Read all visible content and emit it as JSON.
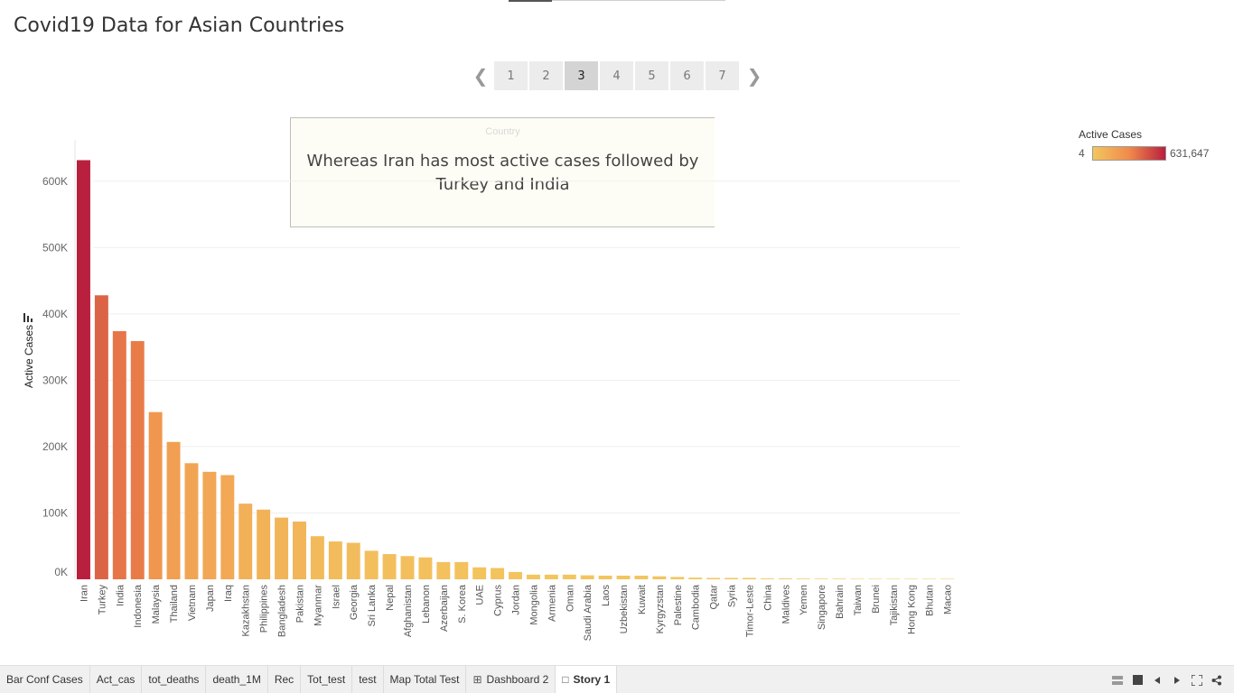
{
  "title": "Covid19 Data for Asian Countries",
  "pager": {
    "pages": [
      "1",
      "2",
      "3",
      "4",
      "5",
      "6",
      "7"
    ],
    "active_index": 2,
    "prev_icon": "chevron-left-icon",
    "next_icon": "chevron-right-icon"
  },
  "caption": {
    "header": "Country",
    "text": "Whereas Iran has most active cases followed by Turkey and India"
  },
  "legend": {
    "title": "Active Cases",
    "min_label": "4",
    "max_label": "631,647",
    "color_low": "#f3c65f",
    "color_mid": "#f08a4b",
    "color_high": "#b8203e"
  },
  "chart_data": {
    "type": "bar",
    "ylabel": "Active Cases",
    "ylim": [
      0,
      700000
    ],
    "yticks": [
      0,
      100000,
      200000,
      300000,
      400000,
      500000,
      600000
    ],
    "ytick_labels": [
      "0K",
      "100K",
      "200K",
      "300K",
      "400K",
      "500K",
      "600K"
    ],
    "grid": true,
    "color_min": 4,
    "color_max": 631647,
    "categories": [
      "Iran",
      "Turkey",
      "India",
      "Indonesia",
      "Malaysia",
      "Thailand",
      "Vietnam",
      "Japan",
      "Iraq",
      "Kazakhstan",
      "Philippines",
      "Bangladesh",
      "Pakistan",
      "Myanmar",
      "Israel",
      "Georgia",
      "Sri Lanka",
      "Nepal",
      "Afghanistan",
      "Lebanon",
      "Azerbaijan",
      "S. Korea",
      "UAE",
      "Cyprus",
      "Jordan",
      "Mongolia",
      "Armenia",
      "Oman",
      "Saudi Arabia",
      "Laos",
      "Uzbekistan",
      "Kuwait",
      "Kyrgyzstan",
      "Palestine",
      "Cambodia",
      "Qatar",
      "Syria",
      "Timor-Leste",
      "China",
      "Maldives",
      "Yemen",
      "Singapore",
      "Bahrain",
      "Taiwan",
      "Brunei",
      "Tajikistan",
      "Hong Kong",
      "Bhutan",
      "Macao"
    ],
    "values": [
      631647,
      428000,
      374000,
      359000,
      252000,
      207000,
      175000,
      162000,
      157000,
      114000,
      105000,
      93000,
      87000,
      65000,
      57000,
      55000,
      43000,
      38000,
      35000,
      33000,
      26000,
      26000,
      18000,
      17000,
      11000,
      7000,
      7000,
      7000,
      6000,
      5500,
      5500,
      5500,
      4500,
      3500,
      2500,
      2000,
      2000,
      2000,
      1200,
      1200,
      1000,
      900,
      900,
      300,
      250,
      200,
      150,
      100,
      4
    ]
  },
  "tabs": [
    {
      "label": "Bar Conf Cases",
      "icon": ""
    },
    {
      "label": "Act_cas",
      "icon": ""
    },
    {
      "label": "tot_deaths",
      "icon": ""
    },
    {
      "label": "death_1M",
      "icon": ""
    },
    {
      "label": "Rec",
      "icon": ""
    },
    {
      "label": "Tot_test",
      "icon": ""
    },
    {
      "label": "test",
      "icon": ""
    },
    {
      "label": "Map  Total Test",
      "icon": ""
    },
    {
      "label": "Dashboard 2",
      "icon": "dashboard-grid-icon"
    },
    {
      "label": "Story 1",
      "icon": "story-book-icon",
      "active": true
    }
  ],
  "tab_controls": [
    "show-tabs-icon",
    "stop-icon",
    "previous-icon",
    "next-icon",
    "fullscreen-icon",
    "share-icon"
  ]
}
